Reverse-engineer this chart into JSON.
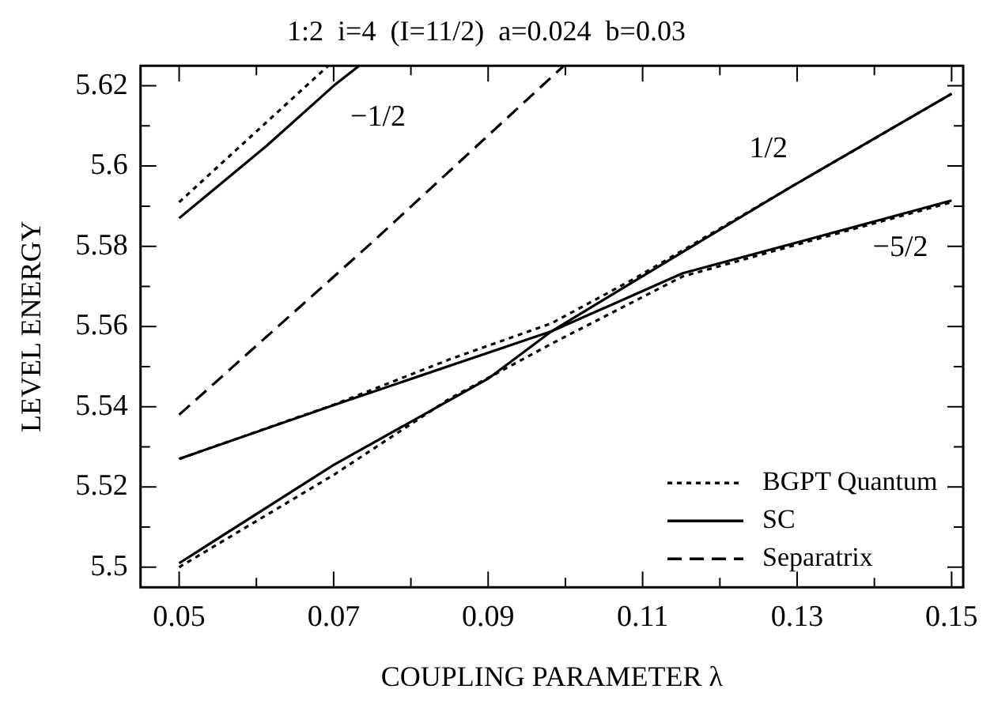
{
  "chart_data": {
    "type": "line",
    "title": "1:2  i=4  (I=11/2)  a=0.024  b=0.03",
    "xlabel": "COUPLING PARAMETER λ",
    "ylabel": "LEVEL ENERGY",
    "xlim": [
      0.045,
      0.1515
    ],
    "ylim": [
      5.495,
      5.625
    ],
    "xticks": [
      0.05,
      {
        "value": 0.06,
        "label": null
      },
      0.07,
      {
        "value": 0.08,
        "label": null
      },
      0.09,
      {
        "value": 0.1,
        "label": null
      },
      0.11,
      {
        "value": 0.12,
        "label": null
      },
      0.13,
      {
        "value": 0.14,
        "label": null
      },
      0.15
    ],
    "yticks": [
      5.5,
      {
        "value": 5.51,
        "label": null
      },
      5.52,
      {
        "value": 5.53,
        "label": null
      },
      5.54,
      {
        "value": 5.55,
        "label": null
      },
      5.56,
      {
        "value": 5.57,
        "label": null
      },
      5.58,
      {
        "value": 5.59,
        "label": null
      },
      5.6,
      {
        "value": 5.61,
        "label": null
      },
      5.62
    ],
    "grid": false,
    "legend": "bottom right",
    "marker": "none",
    "series": [
      {
        "name": "BGPT Quantum",
        "color": "#000000",
        "line_style": "dotted",
        "x": [
          0.05,
          0.07,
          0.085,
          0.0982,
          0.109,
          0.1285,
          0.15
        ],
        "values": [
          5.527,
          5.5405,
          5.5518,
          5.5608,
          5.572,
          5.594,
          5.618
        ]
      },
      {
        "color": "#000000",
        "line_style": "dotted",
        "x": [
          0.05,
          0.07,
          0.085,
          0.0982,
          0.1152,
          0.132,
          0.15
        ],
        "values": [
          5.5,
          5.523,
          5.542,
          5.5557,
          5.5725,
          5.5815,
          5.591
        ]
      },
      {
        "color": "#000000",
        "line_style": "dotted",
        "x": [
          0.05,
          0.0693
        ],
        "values": [
          5.591,
          5.625
        ]
      },
      {
        "name": "SC",
        "color": "#000000",
        "line_style": "solid",
        "x": [
          0.05,
          0.07,
          0.09,
          0.0982,
          0.109,
          0.1285,
          0.15
        ],
        "values": [
          5.501,
          5.5255,
          5.547,
          5.5588,
          5.5714,
          5.594,
          5.618
        ]
      },
      {
        "color": "#000000",
        "line_style": "solid",
        "x": [
          0.05,
          0.07,
          0.0982,
          0.1152,
          0.132,
          0.15
        ],
        "values": [
          5.527,
          5.5404,
          5.5588,
          5.5733,
          5.582,
          5.5914
        ]
      },
      {
        "color": "#000000",
        "line_style": "solid",
        "x": [
          0.05,
          0.0613,
          0.07,
          0.0733
        ],
        "values": [
          5.587,
          5.605,
          5.62,
          5.625
        ]
      },
      {
        "name": "Separatrix",
        "color": "#000000",
        "line_style": "dashed",
        "x": [
          0.05,
          0.075,
          0.0998
        ],
        "values": [
          5.538,
          5.581,
          5.625
        ]
      }
    ],
    "annotations": [
      "−1/2",
      "1/2",
      "−5/2"
    ]
  }
}
